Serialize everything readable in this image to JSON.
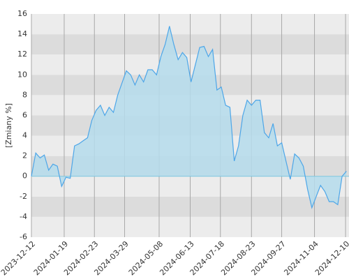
{
  "chart_data": {
    "type": "area",
    "y_label": "[Zmiany %]",
    "x": [
      "2023-12-12",
      "2023-12-17",
      "2023-12-22",
      "2023-12-27",
      "2024-01-01",
      "2024-01-06",
      "2024-01-11",
      "2024-01-16",
      "2024-01-21",
      "2024-01-26",
      "2024-01-31",
      "2024-02-05",
      "2024-02-10",
      "2024-02-15",
      "2024-02-20",
      "2024-02-25",
      "2024-03-01",
      "2024-03-06",
      "2024-03-11",
      "2024-03-16",
      "2024-03-21",
      "2024-03-26",
      "2024-03-31",
      "2024-04-05",
      "2024-04-10",
      "2024-04-15",
      "2024-04-20",
      "2024-04-25",
      "2024-04-30",
      "2024-05-05",
      "2024-05-10",
      "2024-05-15",
      "2024-05-20",
      "2024-05-25",
      "2024-05-30",
      "2024-06-04",
      "2024-06-09",
      "2024-06-14",
      "2024-06-19",
      "2024-06-24",
      "2024-06-29",
      "2024-07-04",
      "2024-07-09",
      "2024-07-14",
      "2024-07-19",
      "2024-07-24",
      "2024-07-29",
      "2024-08-03",
      "2024-08-08",
      "2024-08-13",
      "2024-08-18",
      "2024-08-23",
      "2024-08-28",
      "2024-09-02",
      "2024-09-07",
      "2024-09-12",
      "2024-09-17",
      "2024-09-22",
      "2024-09-27",
      "2024-10-02",
      "2024-10-07",
      "2024-10-12",
      "2024-10-17",
      "2024-10-22",
      "2024-10-27",
      "2024-11-01",
      "2024-11-06",
      "2024-11-11",
      "2024-11-16",
      "2024-11-21",
      "2024-11-26",
      "2024-12-01",
      "2024-12-06",
      "2024-12-11"
    ],
    "values": [
      0,
      2.3,
      1.8,
      2.1,
      0.6,
      1.2,
      1.0,
      -1.0,
      -0.1,
      -0.2,
      3.0,
      3.2,
      3.5,
      3.8,
      5.5,
      6.5,
      7.0,
      6.0,
      6.8,
      6.3,
      8.0,
      9.2,
      10.4,
      10.0,
      9.0,
      10.0,
      9.3,
      10.5,
      10.5,
      10.0,
      11.8,
      13.0,
      14.8,
      13.0,
      11.5,
      12.2,
      11.7,
      9.3,
      11.0,
      12.7,
      12.8,
      11.8,
      12.5,
      8.5,
      8.8,
      7.0,
      6.8,
      1.5,
      3.0,
      6.0,
      7.5,
      7.0,
      7.5,
      7.5,
      4.3,
      3.8,
      5.2,
      3.0,
      3.3,
      1.5,
      -0.3,
      2.2,
      1.8,
      1.0,
      -1.3,
      -3.1,
      -2.0,
      -0.9,
      -1.5,
      -2.5,
      -2.5,
      -2.8,
      0.0,
      0.5
    ],
    "color": "#4da6e8",
    "fill_color": "#b5dcec",
    "xlim": [
      "2023-12-12",
      "2024-12-14"
    ],
    "xticks": [
      "2023-12-12",
      "2024-01-19",
      "2024-02-23",
      "2024-03-29",
      "2024-05-08",
      "2024-06-13",
      "2024-07-18",
      "2024-08-23",
      "2024-09-27",
      "2024-11-04",
      "2024-12-10"
    ],
    "ylim": [
      -6,
      16
    ],
    "yticks": [
      -6,
      -4,
      -2,
      0,
      2,
      4,
      6,
      8,
      10,
      12,
      14,
      16
    ],
    "grid": true
  }
}
